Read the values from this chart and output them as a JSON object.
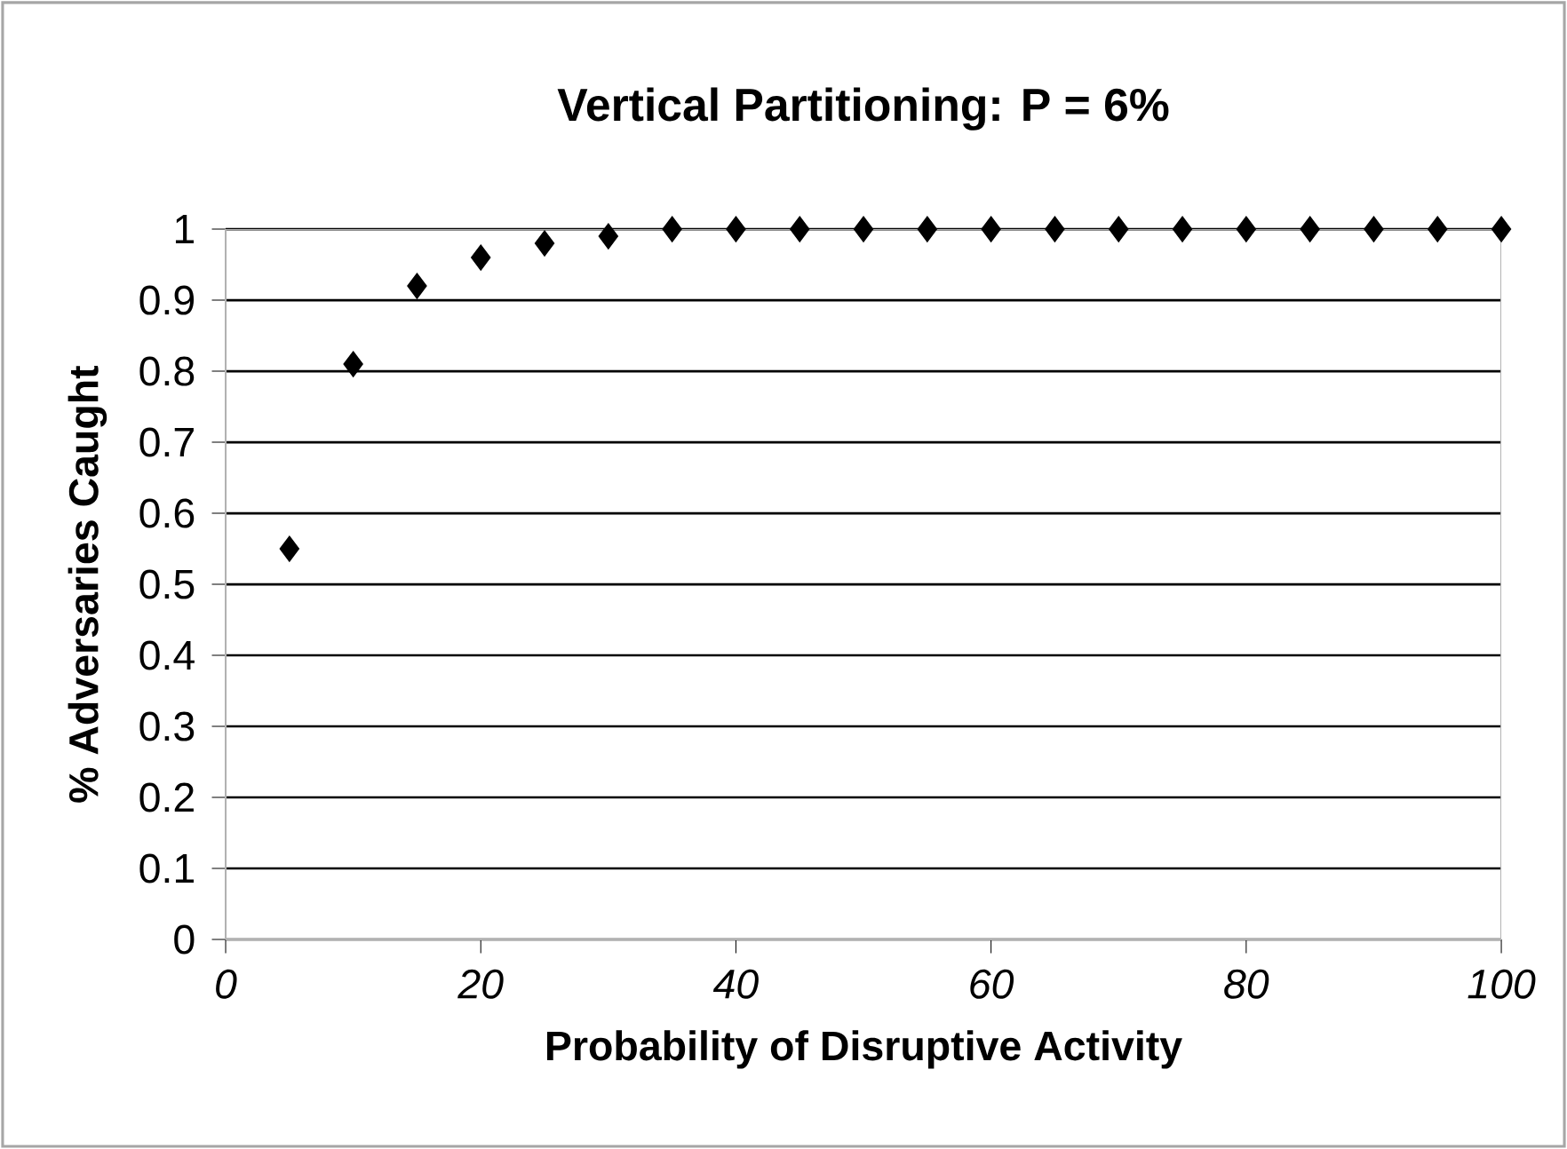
{
  "chart_data": {
    "type": "scatter",
    "title": "Vertical Partitioning: P = 6%",
    "xlabel": "Probability of Disruptive Activity",
    "ylabel": "% Adversaries Caught",
    "x": [
      5,
      10,
      15,
      20,
      25,
      30,
      35,
      40,
      45,
      50,
      55,
      60,
      65,
      70,
      75,
      80,
      85,
      90,
      95,
      100
    ],
    "values": [
      0.55,
      0.81,
      0.92,
      0.96,
      0.98,
      0.99,
      1.0,
      1.0,
      1.0,
      1.0,
      1.0,
      1.0,
      1.0,
      1.0,
      1.0,
      1.0,
      1.0,
      1.0,
      1.0,
      1.0
    ],
    "color": "#000000",
    "marker": "diamond",
    "grid": "y",
    "xlim": [
      0,
      100
    ],
    "ylim": [
      0,
      1
    ],
    "xticks": [
      0,
      20,
      40,
      60,
      80,
      100
    ],
    "yticks": [
      0,
      0.1,
      0.2,
      0.3,
      0.4,
      0.5,
      0.6,
      0.7,
      0.8,
      0.9,
      1
    ]
  }
}
